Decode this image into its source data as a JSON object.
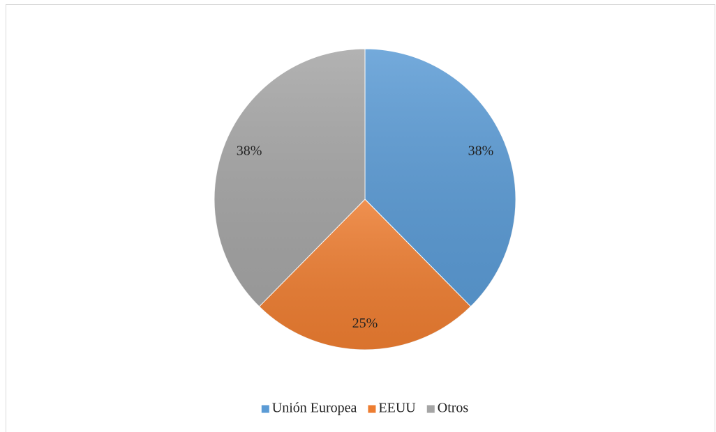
{
  "chart_data": {
    "type": "pie",
    "categories": [
      "Unión Europea",
      "EEUU",
      "Otros"
    ],
    "values": [
      38,
      25,
      38
    ],
    "value_labels": [
      "38%",
      "25%",
      "38%"
    ],
    "colors": [
      "#5b9bd5",
      "#ed7d31",
      "#a5a5a5"
    ],
    "legend": "bottom"
  }
}
